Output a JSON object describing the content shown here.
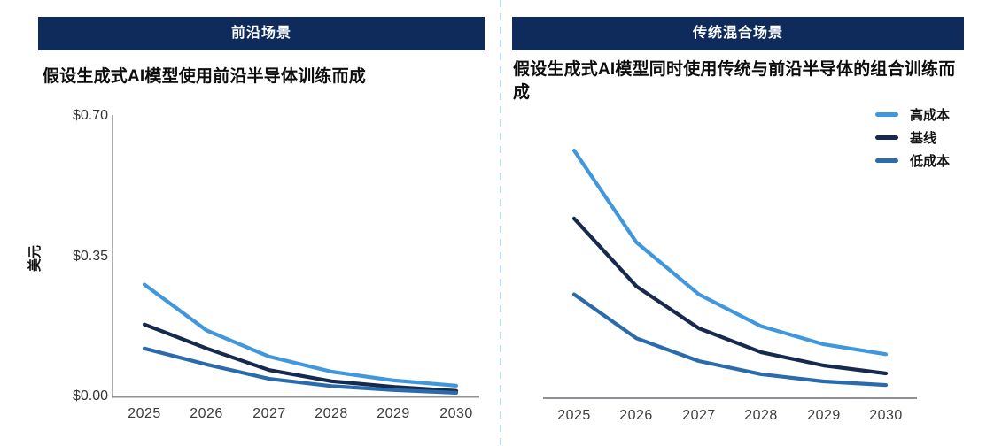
{
  "colors": {
    "banner_bg": "#0e2b5c",
    "axis": "#8e9096",
    "divider": "#b9dbe9",
    "high_cost": "#4197dc",
    "baseline": "#16294e",
    "low_cost": "#2a6cab"
  },
  "panels": [
    {
      "banner": "前沿场景",
      "subtitle": "假设生成式AI模型使用前沿半导体训练而成"
    },
    {
      "banner": "传统混合场景",
      "subtitle": "假设生成式AI模型同时使用传统与前沿半导体的组合训练而成"
    }
  ],
  "legend": [
    {
      "label": "高成本",
      "color": "#4197dc"
    },
    {
      "label": "基线",
      "color": "#16294e"
    },
    {
      "label": "低成本",
      "color": "#2a6cab"
    }
  ],
  "y_axis": {
    "label": "美元",
    "ticks": [
      "$0.70",
      "$0.35",
      "$0.00"
    ]
  },
  "chart_data": [
    {
      "type": "line",
      "title": "前沿场景",
      "subtitle": "假设生成式AI模型使用前沿半导体训练而成",
      "xlabel": "",
      "ylabel": "美元",
      "x": [
        2025,
        2026,
        2027,
        2028,
        2029,
        2030
      ],
      "ylim": [
        0.0,
        0.7
      ],
      "y_ticks": [
        0.0,
        0.35,
        0.7
      ],
      "grid": false,
      "series": [
        {
          "name": "高成本",
          "color": "#4197dc",
          "values": [
            0.28,
            0.165,
            0.1,
            0.062,
            0.04,
            0.027
          ]
        },
        {
          "name": "基线",
          "color": "#16294e",
          "values": [
            0.18,
            0.12,
            0.066,
            0.038,
            0.024,
            0.014
          ]
        },
        {
          "name": "低成本",
          "color": "#2a6cab",
          "values": [
            0.12,
            0.08,
            0.044,
            0.026,
            0.016,
            0.009
          ]
        }
      ]
    },
    {
      "type": "line",
      "title": "传统混合场景",
      "subtitle": "假设生成式AI模型同时使用传统与前沿半导体的组合训练而成",
      "xlabel": "",
      "ylabel": "",
      "x": [
        2025,
        2026,
        2027,
        2028,
        2029,
        2030
      ],
      "ylim": [
        0.0,
        0.7
      ],
      "y_ticks": [],
      "grid": false,
      "legend_position": "top-right",
      "series": [
        {
          "name": "高成本",
          "color": "#4197dc",
          "values": [
            0.62,
            0.39,
            0.26,
            0.18,
            0.135,
            0.11
          ]
        },
        {
          "name": "基线",
          "color": "#16294e",
          "values": [
            0.45,
            0.28,
            0.175,
            0.115,
            0.082,
            0.062
          ]
        },
        {
          "name": "低成本",
          "color": "#2a6cab",
          "values": [
            0.26,
            0.15,
            0.093,
            0.06,
            0.042,
            0.033
          ]
        }
      ]
    }
  ]
}
